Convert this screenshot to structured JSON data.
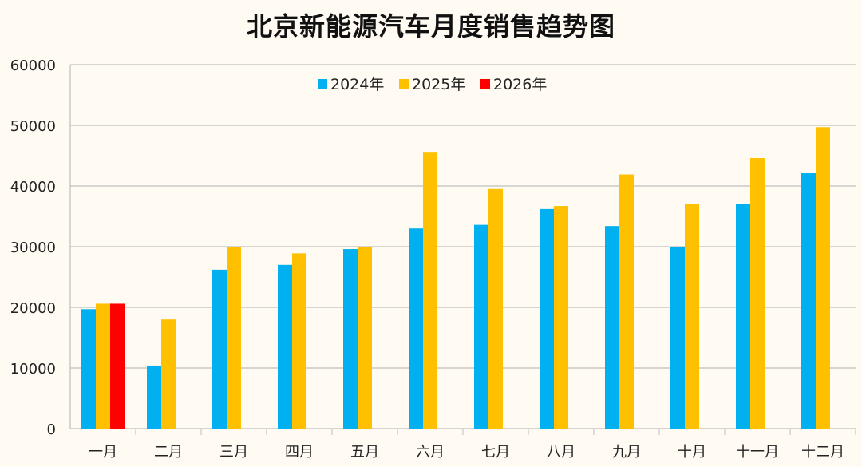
{
  "chart_data": {
    "type": "bar",
    "title": "北京新能源汽车月度销售趋势图",
    "categories": [
      "一月",
      "二月",
      "三月",
      "四月",
      "五月",
      "六月",
      "七月",
      "八月",
      "九月",
      "十月",
      "十一月",
      "十二月"
    ],
    "series": [
      {
        "name": "2024年",
        "color": "#00b0f0",
        "values": [
          19700,
          10400,
          26200,
          27000,
          29600,
          33000,
          33600,
          36200,
          33400,
          29900,
          37100,
          42100
        ]
      },
      {
        "name": "2025年",
        "color": "#ffc000",
        "values": [
          20600,
          18000,
          30000,
          28900,
          29900,
          45500,
          39500,
          36700,
          41900,
          37000,
          44600,
          49700
        ]
      },
      {
        "name": "2026年",
        "color": "#ff0000",
        "values": [
          20600,
          null,
          null,
          null,
          null,
          null,
          null,
          null,
          null,
          null,
          null,
          null
        ]
      }
    ],
    "ylim": [
      0,
      60000
    ],
    "yticks": [
      0,
      10000,
      20000,
      30000,
      40000,
      50000,
      60000
    ],
    "grid": true,
    "legend": "top-center"
  }
}
